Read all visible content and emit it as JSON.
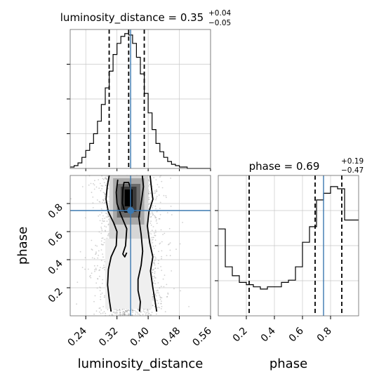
{
  "chart_data": {
    "type": "corner",
    "parameters": [
      "luminosity_distance",
      "phase"
    ],
    "truths": {
      "luminosity_distance": 0.355,
      "phase": 0.75
    },
    "truth_color": "#3b78b0",
    "line_color": "#000000",
    "grid": true,
    "panels": [
      {
        "id": "hist-luminosity-distance",
        "type": "histogram",
        "title_name": "luminosity_distance",
        "title_eq": " = 0.35",
        "title_plus": "+0.04",
        "title_minus": "−0.05",
        "xlim": [
          0.2,
          0.56
        ],
        "quantiles": [
          0.3,
          0.35,
          0.39
        ],
        "bin_edges": [
          0.2,
          0.21,
          0.22,
          0.23,
          0.24,
          0.25,
          0.26,
          0.27,
          0.28,
          0.29,
          0.3,
          0.31,
          0.32,
          0.33,
          0.34,
          0.35,
          0.36,
          0.37,
          0.38,
          0.39,
          0.4,
          0.41,
          0.42,
          0.43,
          0.44,
          0.45,
          0.46,
          0.47,
          0.48,
          0.49,
          0.5,
          0.51,
          0.52,
          0.53,
          0.54,
          0.55,
          0.56
        ],
        "values": [
          1,
          2,
          4,
          8,
          13,
          18,
          25,
          34,
          46,
          58,
          70,
          82,
          90,
          95,
          97,
          96,
          90,
          80,
          68,
          54,
          40,
          28,
          18,
          12,
          8,
          5,
          3,
          2,
          1,
          1,
          0,
          0,
          0,
          0,
          0,
          0
        ]
      },
      {
        "id": "hist-phase",
        "type": "histogram",
        "title_name": "phase",
        "title_eq": " = 0.69",
        "title_plus": "+0.19",
        "title_minus": "−0.47",
        "xlim": [
          0.0,
          1.0
        ],
        "quantiles": [
          0.22,
          0.69,
          0.88
        ],
        "bin_edges": [
          0.0,
          0.05,
          0.1,
          0.15,
          0.2,
          0.25,
          0.3,
          0.35,
          0.4,
          0.45,
          0.5,
          0.55,
          0.6,
          0.65,
          0.7,
          0.75,
          0.8,
          0.85,
          0.9,
          0.95,
          1.0
        ],
        "values": [
          39,
          22,
          18,
          15,
          14,
          13,
          12,
          13,
          13,
          15,
          16,
          22,
          33,
          40,
          52,
          55,
          58,
          57,
          43,
          43
        ]
      },
      {
        "id": "hist2d-phase-vs-luminosity-distance",
        "type": "hist2d",
        "xparam": "luminosity_distance",
        "yparam": "phase",
        "xlim": [
          0.2,
          0.56
        ],
        "ylim": [
          0.0,
          1.0
        ],
        "xticks": [
          "0.24",
          "0.32",
          "0.40",
          "0.48",
          "0.56"
        ],
        "yticks": [
          "0.2",
          "0.4",
          "0.6",
          "0.8"
        ],
        "xlabel": "luminosity_distance",
        "ylabel": "phase"
      }
    ],
    "phase_xticks": [
      "0.2",
      "0.4",
      "0.6",
      "0.8"
    ],
    "phase_xlabel": "phase"
  }
}
